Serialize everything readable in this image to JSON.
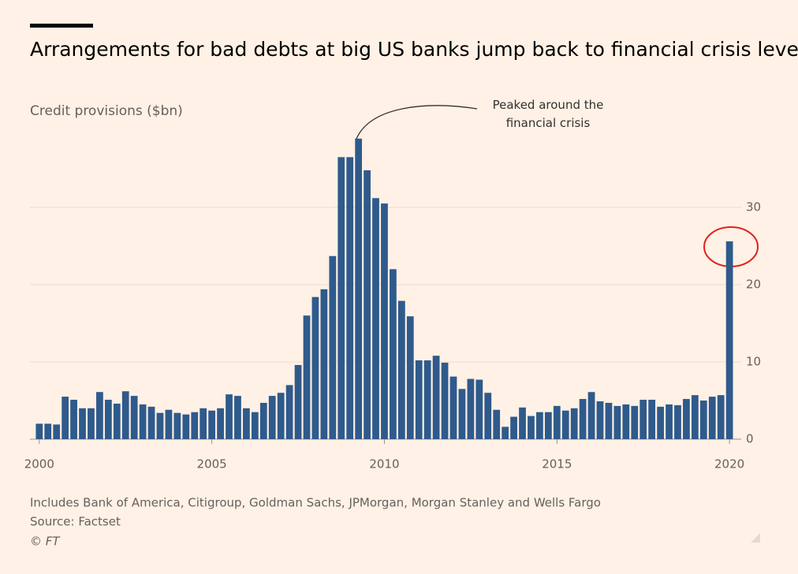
{
  "chart_data": {
    "type": "bar",
    "title": "Arrangements for bad debts at big US banks jump back to financial crisis levels",
    "subtitle": "Credit provisions ($bn)",
    "annotation": "Peaked around the financial crisis",
    "note": "Includes Bank of America, Citigroup, Goldman Sachs, JPMorgan, Morgan Stanley and Wells Fargo",
    "source": "Source: Factset",
    "credit": "© FT",
    "color": "#2f5a8c",
    "x": [
      2000,
      2000.25,
      2000.5,
      2000.75,
      2001,
      2001.25,
      2001.5,
      2001.75,
      2002,
      2002.25,
      2002.5,
      2002.75,
      2003,
      2003.25,
      2003.5,
      2003.75,
      2004,
      2004.25,
      2004.5,
      2004.75,
      2005,
      2005.25,
      2005.5,
      2005.75,
      2006,
      2006.25,
      2006.5,
      2006.75,
      2007,
      2007.25,
      2007.5,
      2007.75,
      2008,
      2008.25,
      2008.5,
      2008.75,
      2009,
      2009.25,
      2009.5,
      2009.75,
      2010,
      2010.25,
      2010.5,
      2010.75,
      2011,
      2011.25,
      2011.5,
      2011.75,
      2012,
      2012.25,
      2012.5,
      2012.75,
      2013,
      2013.25,
      2013.5,
      2013.75,
      2014,
      2014.25,
      2014.5,
      2014.75,
      2015,
      2015.25,
      2015.5,
      2015.75,
      2016,
      2016.25,
      2016.5,
      2016.75,
      2017,
      2017.25,
      2017.5,
      2017.75,
      2018,
      2018.25,
      2018.5,
      2018.75,
      2019,
      2019.25,
      2019.5,
      2019.75,
      2020
    ],
    "values": [
      2.0,
      2.0,
      1.9,
      5.5,
      5.1,
      4.0,
      4.0,
      6.1,
      5.1,
      4.6,
      6.2,
      5.6,
      4.5,
      4.2,
      3.4,
      3.8,
      3.4,
      3.2,
      3.5,
      4.0,
      3.7,
      4.0,
      5.8,
      5.6,
      4.0,
      3.5,
      4.7,
      5.6,
      6.0,
      7.0,
      9.6,
      16.0,
      18.4,
      19.4,
      23.7,
      36.5,
      36.5,
      38.9,
      34.8,
      31.2,
      30.5,
      22.0,
      17.9,
      15.9,
      10.2,
      10.2,
      10.8,
      9.9,
      8.1,
      6.5,
      7.8,
      7.7,
      6.0,
      3.8,
      1.6,
      2.9,
      4.1,
      3.0,
      3.5,
      3.5,
      4.3,
      3.7,
      4.0,
      5.2,
      6.1,
      4.9,
      4.7,
      4.3,
      4.5,
      4.3,
      5.1,
      5.1,
      4.2,
      4.5,
      4.4,
      5.2,
      5.7,
      5.0,
      5.5,
      5.7,
      25.6
    ],
    "xlim": [
      1999.73,
      2020.34
    ],
    "xticks": [
      2000,
      2005,
      2010,
      2015,
      2020
    ],
    "ylim": [
      0,
      40
    ],
    "yticks": [
      0,
      10,
      20,
      30
    ],
    "grid": true
  }
}
